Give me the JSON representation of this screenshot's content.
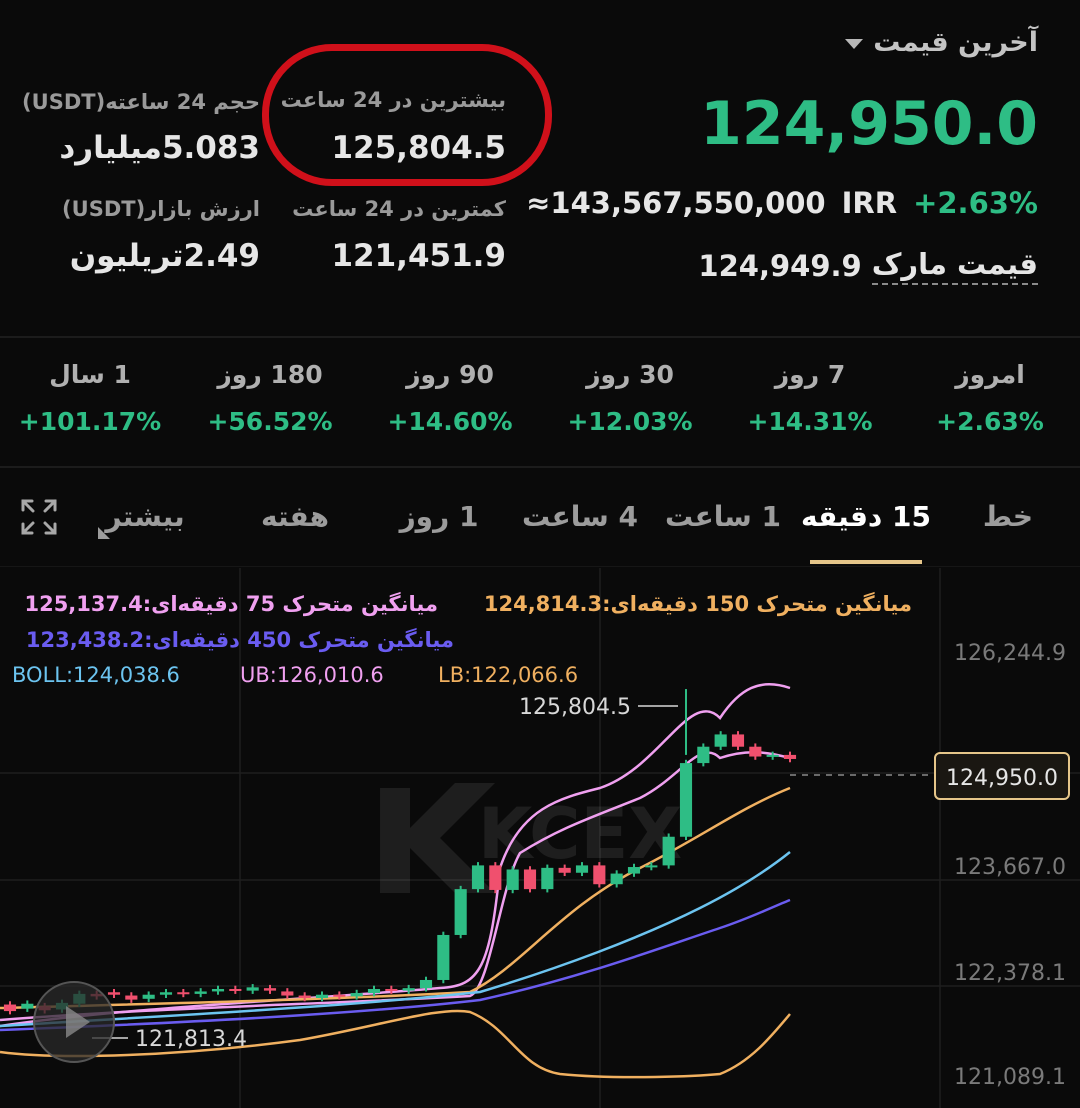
{
  "ticker": {
    "last_price_label": "آخرین قیمت",
    "last_price": "124,950.0",
    "irr_value": "≈143,567,550,000",
    "irr_unit": "IRR",
    "change_pct": "+2.63%",
    "mark_price_value": "124,949.9",
    "mark_price_label": "قیمت مارک",
    "high_24h_label": "بیشترین در 24 ساعت",
    "high_24h_value": "125,804.5",
    "low_24h_label": "کمترین در 24 ساعت",
    "low_24h_value": "121,451.9",
    "volume_24h_label": "حجم 24 ساعته(USDT)",
    "volume_24h_value": "5.083میلیارد",
    "market_cap_label": "ارزش بازار(USDT)",
    "market_cap_value": "2.49تریلیون"
  },
  "periods": [
    {
      "label": "امروز",
      "value": "+2.63%"
    },
    {
      "label": "7 روز",
      "value": "+14.31%"
    },
    {
      "label": "30 روز",
      "value": "+12.03%"
    },
    {
      "label": "90 روز",
      "value": "+14.60%"
    },
    {
      "label": "180 روز",
      "value": "+56.52%"
    },
    {
      "label": "1 سال",
      "value": "+101.17%"
    }
  ],
  "tabs": {
    "line": "خط",
    "m15": "15 دقیقه",
    "h1": "1 ساعت",
    "h4": "4 ساعت",
    "d1": "1 روز",
    "week": "هفته",
    "more": "بیشتر",
    "active": "15 دقیقه"
  },
  "indicators": {
    "ma150": "میانگین متحرک 150 دقیقه‌ای:124,814.3",
    "ma75": "میانگین متحرک 75 دقیقه‌ای:125,137.4",
    "ma450": "میانگین متحرک 450 دقیقه‌ای:123,438.2",
    "boll": "BOLL:124,038.6",
    "ub": "UB:126,010.6",
    "lb": "LB:122,066.6"
  },
  "chart": {
    "y_ticks": [
      "126,244.9",
      "123,667.0",
      "122,378.1",
      "121,089.1"
    ],
    "current_price_tag": "124,950.0",
    "high_marker": "125,804.5",
    "low_marker": "121,813.4",
    "watermark": "KCEX",
    "colors": {
      "up": "#2ebd85",
      "down": "#f0506e",
      "ma75": "#f0a0f0",
      "ma150": "#f0b060",
      "ma450": "#6a5cf0",
      "boll": "#6cc4f0",
      "tab_underline": "#e6c68a",
      "highlight_circle": "#d0101a"
    }
  },
  "chart_data": {
    "type": "candlestick",
    "y_range": [
      121089.1,
      126244.9
    ],
    "high_marker": 125804.5,
    "low_marker": 121813.4,
    "current_price": 124950.0,
    "candles": [
      {
        "o": 121950,
        "c": 121870
      },
      {
        "o": 121900,
        "c": 121960
      },
      {
        "o": 121930,
        "c": 121880
      },
      {
        "o": 121890,
        "c": 121970
      },
      {
        "o": 121960,
        "c": 122080
      },
      {
        "o": 122080,
        "c": 122050
      },
      {
        "o": 122100,
        "c": 122070
      },
      {
        "o": 122060,
        "c": 122010
      },
      {
        "o": 122020,
        "c": 122070
      },
      {
        "o": 122070,
        "c": 122100
      },
      {
        "o": 122100,
        "c": 122080
      },
      {
        "o": 122080,
        "c": 122110
      },
      {
        "o": 122110,
        "c": 122140
      },
      {
        "o": 122140,
        "c": 122120
      },
      {
        "o": 122120,
        "c": 122160
      },
      {
        "o": 122150,
        "c": 122120
      },
      {
        "o": 122110,
        "c": 122060
      },
      {
        "o": 122060,
        "c": 122030
      },
      {
        "o": 122030,
        "c": 122070
      },
      {
        "o": 122070,
        "c": 122050
      },
      {
        "o": 122050,
        "c": 122090
      },
      {
        "o": 122090,
        "c": 122140
      },
      {
        "o": 122140,
        "c": 122120
      },
      {
        "o": 122120,
        "c": 122150
      },
      {
        "o": 122150,
        "c": 122250
      },
      {
        "o": 122250,
        "c": 122800
      },
      {
        "o": 122800,
        "c": 123360
      },
      {
        "o": 123360,
        "c": 123650
      },
      {
        "o": 123650,
        "c": 123350
      },
      {
        "o": 123350,
        "c": 123600
      },
      {
        "o": 123600,
        "c": 123360
      },
      {
        "o": 123360,
        "c": 123620
      },
      {
        "o": 123620,
        "c": 123560
      },
      {
        "o": 123560,
        "c": 123650
      },
      {
        "o": 123650,
        "c": 123420
      },
      {
        "o": 123420,
        "c": 123550
      },
      {
        "o": 123550,
        "c": 123630
      },
      {
        "o": 123630,
        "c": 123650
      },
      {
        "o": 123650,
        "c": 124000
      },
      {
        "o": 124000,
        "c": 124900
      },
      {
        "o": 124900,
        "c": 125100
      },
      {
        "o": 125100,
        "c": 125250
      },
      {
        "o": 125250,
        "c": 125100
      },
      {
        "o": 125100,
        "c": 124980
      },
      {
        "o": 124980,
        "c": 125000
      },
      {
        "o": 125000,
        "c": 124950
      }
    ]
  }
}
